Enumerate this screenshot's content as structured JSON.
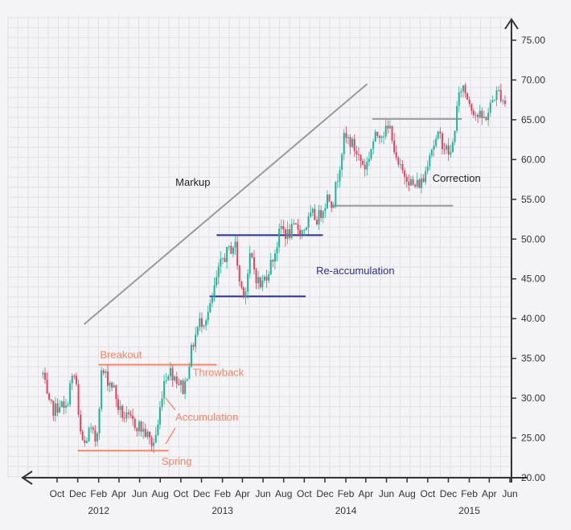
{
  "chart_data": {
    "type": "candlestick",
    "title": "",
    "xlabel": "",
    "ylabel": "",
    "ylim": [
      20,
      75
    ],
    "grid": true,
    "colors": {
      "up": "#1fb39b",
      "down": "#e0455f",
      "annotation_orange": "#f0876a",
      "annotation_blue": "#2a2f8a",
      "support_gray": "#9a9a9a",
      "axis": "#333333"
    },
    "y_ticks": [
      {
        "value": 20,
        "label": "20.00"
      },
      {
        "value": 25,
        "label": "25.00"
      },
      {
        "value": 30,
        "label": "30.00"
      },
      {
        "value": 35,
        "label": "35.00"
      },
      {
        "value": 40,
        "label": "40.00"
      },
      {
        "value": 45,
        "label": "45.00"
      },
      {
        "value": 50,
        "label": "50.00"
      },
      {
        "value": 55,
        "label": "55.00"
      },
      {
        "value": 60,
        "label": "60.00"
      },
      {
        "value": 65,
        "label": "65.00"
      },
      {
        "value": 70,
        "label": "70.00"
      },
      {
        "value": 75,
        "label": "75.00"
      }
    ],
    "x_ticks": [
      {
        "date": "2011-10",
        "label": "Oct"
      },
      {
        "date": "2011-12",
        "label": "Dec"
      },
      {
        "date": "2012-02",
        "label": "Feb"
      },
      {
        "date": "2012-04",
        "label": "Apr"
      },
      {
        "date": "2012-06",
        "label": "Jun"
      },
      {
        "date": "2012-08",
        "label": "Aug"
      },
      {
        "date": "2012-10",
        "label": "Oct"
      },
      {
        "date": "2012-12",
        "label": "Dec"
      },
      {
        "date": "2013-02",
        "label": "Feb"
      },
      {
        "date": "2013-04",
        "label": "Apr"
      },
      {
        "date": "2013-06",
        "label": "Jun"
      },
      {
        "date": "2013-08",
        "label": "Aug"
      },
      {
        "date": "2013-10",
        "label": "Oct"
      },
      {
        "date": "2013-12",
        "label": "Dec"
      },
      {
        "date": "2014-02",
        "label": "Feb"
      },
      {
        "date": "2014-04",
        "label": "Apr"
      },
      {
        "date": "2014-06",
        "label": "Jun"
      },
      {
        "date": "2014-08",
        "label": "Aug"
      },
      {
        "date": "2014-10",
        "label": "Oct"
      },
      {
        "date": "2014-12",
        "label": "Dec"
      },
      {
        "date": "2015-02",
        "label": "Feb"
      },
      {
        "date": "2015-04",
        "label": "Apr"
      },
      {
        "date": "2015-06",
        "label": "Jun"
      }
    ],
    "year_labels": [
      {
        "date": "2012-02",
        "label": "2012"
      },
      {
        "date": "2013-02",
        "label": "2013"
      },
      {
        "date": "2014-02",
        "label": "2014"
      },
      {
        "date": "2015-02",
        "label": "2015"
      }
    ],
    "price_path": [
      [
        "2011-08-20",
        33.0
      ],
      [
        "2011-09-05",
        29.0
      ],
      [
        "2011-09-25",
        28.5
      ],
      [
        "2011-10-10",
        29.5
      ],
      [
        "2011-10-25",
        28.0
      ],
      [
        "2011-11-10",
        32.0
      ],
      [
        "2011-11-25",
        33.0
      ],
      [
        "2011-12-05",
        26.0
      ],
      [
        "2011-12-20",
        24.0
      ],
      [
        "2012-01-05",
        26.0
      ],
      [
        "2012-01-25",
        24.5
      ],
      [
        "2012-02-10",
        33.5
      ],
      [
        "2012-02-25",
        32.5
      ],
      [
        "2012-03-15",
        31.5
      ],
      [
        "2012-04-01",
        28.5
      ],
      [
        "2012-04-20",
        27.5
      ],
      [
        "2012-05-10",
        27.0
      ],
      [
        "2012-05-30",
        26.5
      ],
      [
        "2012-06-20",
        25.5
      ],
      [
        "2012-07-10",
        24.0
      ],
      [
        "2012-07-25",
        26.5
      ],
      [
        "2012-08-10",
        32.0
      ],
      [
        "2012-08-25",
        33.5
      ],
      [
        "2012-09-10",
        33.0
      ],
      [
        "2012-09-25",
        32.0
      ],
      [
        "2012-10-10",
        31.0
      ],
      [
        "2012-10-25",
        34.5
      ],
      [
        "2012-11-10",
        37.5
      ],
      [
        "2012-11-25",
        39.5
      ],
      [
        "2012-12-10",
        40.0
      ],
      [
        "2012-12-25",
        41.0
      ],
      [
        "2013-01-15",
        45.0
      ],
      [
        "2013-02-01",
        47.5
      ],
      [
        "2013-02-20",
        48.5
      ],
      [
        "2013-03-10",
        49.5
      ],
      [
        "2013-03-25",
        44.0
      ],
      [
        "2013-04-10",
        43.5
      ],
      [
        "2013-04-25",
        48.0
      ],
      [
        "2013-05-10",
        45.5
      ],
      [
        "2013-05-25",
        44.0
      ],
      [
        "2013-06-10",
        45.5
      ],
      [
        "2013-06-25",
        47.0
      ],
      [
        "2013-07-10",
        49.0
      ],
      [
        "2013-07-25",
        51.5
      ],
      [
        "2013-08-10",
        50.5
      ],
      [
        "2013-08-25",
        51.0
      ],
      [
        "2013-09-10",
        51.5
      ],
      [
        "2013-09-25",
        51.0
      ],
      [
        "2013-10-10",
        52.0
      ],
      [
        "2013-10-25",
        53.0
      ],
      [
        "2013-11-10",
        52.5
      ],
      [
        "2013-11-25",
        54.0
      ],
      [
        "2013-12-10",
        55.5
      ],
      [
        "2013-12-25",
        54.5
      ],
      [
        "2014-01-10",
        58.5
      ],
      [
        "2014-01-25",
        62.5
      ],
      [
        "2014-02-10",
        62.5
      ],
      [
        "2014-02-25",
        61.5
      ],
      [
        "2014-03-15",
        60.0
      ],
      [
        "2014-04-01",
        59.0
      ],
      [
        "2014-04-20",
        62.0
      ],
      [
        "2014-05-10",
        63.5
      ],
      [
        "2014-05-30",
        63.5
      ],
      [
        "2014-06-15",
        64.0
      ],
      [
        "2014-06-30",
        59.5
      ],
      [
        "2014-07-15",
        58.5
      ],
      [
        "2014-08-01",
        58.0
      ],
      [
        "2014-08-20",
        56.5
      ],
      [
        "2014-09-05",
        57.0
      ],
      [
        "2014-09-20",
        57.5
      ],
      [
        "2014-10-05",
        61.0
      ],
      [
        "2014-10-20",
        62.0
      ],
      [
        "2014-11-05",
        63.0
      ],
      [
        "2014-11-20",
        61.5
      ],
      [
        "2014-12-10",
        60.5
      ],
      [
        "2014-12-25",
        66.0
      ],
      [
        "2015-01-10",
        69.5
      ],
      [
        "2015-01-25",
        68.0
      ],
      [
        "2015-02-10",
        66.5
      ],
      [
        "2015-02-25",
        65.5
      ],
      [
        "2015-03-15",
        65.0
      ],
      [
        "2015-03-30",
        66.0
      ],
      [
        "2015-04-15",
        68.0
      ],
      [
        "2015-05-01",
        68.5
      ],
      [
        "2015-05-20",
        67.0
      ]
    ],
    "levels": [
      {
        "name": "spring-line",
        "value": 23.4,
        "from": "2011-12-01",
        "to": "2012-08-25",
        "color": "#f0876a"
      },
      {
        "name": "breakout-line",
        "value": 34.2,
        "from": "2012-02-01",
        "to": "2013-01-15",
        "color": "#f0876a"
      },
      {
        "name": "reaccum-upper",
        "value": 50.5,
        "from": "2013-01-15",
        "to": "2013-11-25",
        "color": "#2a2f8a"
      },
      {
        "name": "reaccum-lower",
        "value": 42.8,
        "from": "2012-12-25",
        "to": "2013-10-05",
        "color": "#2a2f8a"
      },
      {
        "name": "correction-upper",
        "value": 65.1,
        "from": "2014-04-20",
        "to": "2015-01-10",
        "color": "#9a9a9a"
      },
      {
        "name": "correction-lower",
        "value": 54.2,
        "from": "2013-12-20",
        "to": "2014-12-15",
        "color": "#9a9a9a"
      }
    ],
    "trend_line": {
      "from": [
        "2011-12-20",
        39.3
      ],
      "to": [
        "2014-04-05",
        69.5
      ],
      "color": "#9a9a9a"
    },
    "annotations": [
      {
        "name": "annotation-breakout",
        "text": "Breakout",
        "date": "2012-02-05",
        "value": 35.0,
        "color": "#f0876a",
        "size": 13
      },
      {
        "name": "annotation-throwback",
        "text": "Throwback",
        "date": "2012-11-05",
        "value": 32.8,
        "color": "#f0876a",
        "size": 13
      },
      {
        "name": "annotation-accumulation",
        "text": "Accumulation",
        "date": "2012-09-15",
        "value": 27.2,
        "color": "#f0876a",
        "size": 13
      },
      {
        "name": "annotation-spring",
        "text": "Spring",
        "date": "2012-08-05",
        "value": 21.6,
        "color": "#f0876a",
        "size": 13
      },
      {
        "name": "annotation-markup",
        "text": "Markup",
        "date": "2012-09-15",
        "value": 56.7,
        "color": "#222222",
        "size": 13
      },
      {
        "name": "annotation-reaccumulation",
        "text": "Re-accumulation",
        "date": "2013-11-05",
        "value": 45.6,
        "color": "#2a2f8a",
        "size": 13
      },
      {
        "name": "annotation-correction",
        "text": "Correction",
        "date": "2014-10-15",
        "value": 57.2,
        "color": "#222222",
        "size": 13
      }
    ]
  }
}
